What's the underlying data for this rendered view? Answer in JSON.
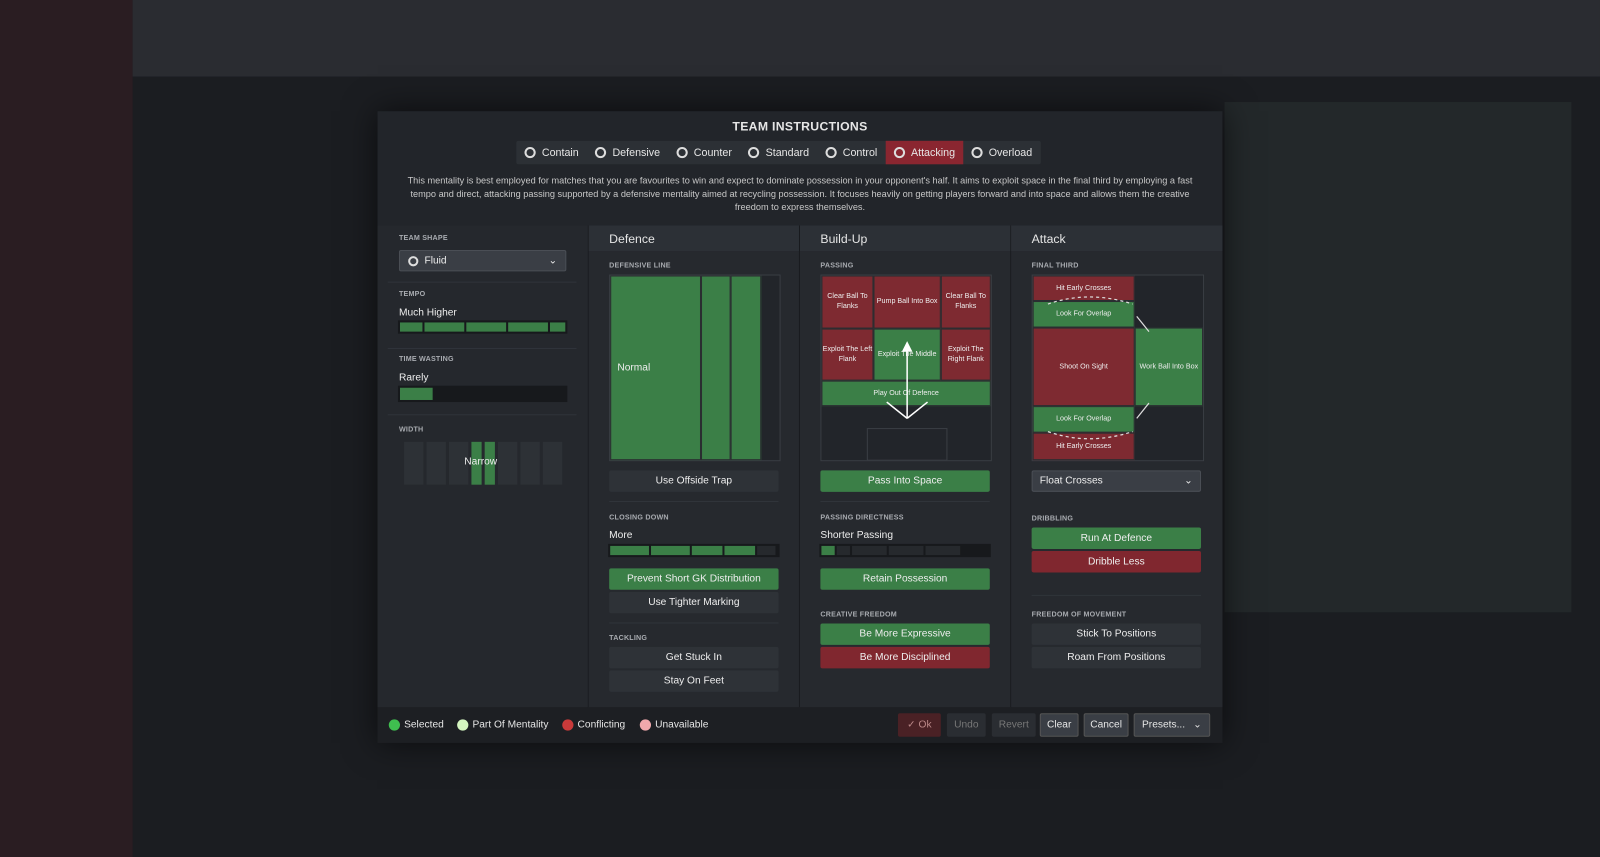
{
  "title": "TEAM INSTRUCTIONS",
  "tabs": [
    {
      "label": "Contain"
    },
    {
      "label": "Defensive"
    },
    {
      "label": "Counter"
    },
    {
      "label": "Standard"
    },
    {
      "label": "Control"
    },
    {
      "label": "Attacking",
      "active": true
    },
    {
      "label": "Overload"
    }
  ],
  "description": "This mentality is best employed for matches that you are favourites to win and expect to dominate possession in your opponent's half. It aims to exploit space in the final third by employing a fast tempo and direct, attacking passing supported by a defensive mentality aimed at recycling possession. It focuses heavily on getting players forward and into space and allows them the creative freedom to express themselves.",
  "left": {
    "team_shape_label": "TEAM SHAPE",
    "team_shape": "Fluid",
    "tempo_label": "TEMPO",
    "tempo": "Much Higher",
    "tempo_level": 5,
    "time_wasting_label": "TIME WASTING",
    "time_wasting": "Rarely",
    "time_wasting_level": 0.2,
    "width_label": "WIDTH",
    "width": "Narrow"
  },
  "defence": {
    "header": "Defence",
    "line_label": "DEFENSIVE LINE",
    "line": "Normal",
    "offside": "Use Offside Trap",
    "closing_label": "CLOSING DOWN",
    "closing": "More",
    "closing_level": 4,
    "gk": "Prevent Short GK Distribution",
    "marking": "Use Tighter Marking",
    "tackling_label": "TACKLING",
    "stuck": "Get Stuck In",
    "feet": "Stay On Feet"
  },
  "buildup": {
    "header": "Build-Up",
    "passing_label": "PASSING",
    "cells": [
      "Clear Ball To Flanks",
      "Pump Ball Into Box",
      "Clear Ball To Flanks",
      "Exploit The Left Flank",
      "Exploit The Middle",
      "Exploit The Right Flank",
      "Play Out Of Defence"
    ],
    "pass_space": "Pass Into Space",
    "directness_label": "PASSING DIRECTNESS",
    "directness": "Shorter Passing",
    "directness_level": 1,
    "retain": "Retain Possession",
    "creative_label": "CREATIVE FREEDOM",
    "expressive": "Be More Expressive",
    "disciplined": "Be More Disciplined"
  },
  "attack": {
    "header": "Attack",
    "final_label": "FINAL THIRD",
    "hit1": "Hit Early Crosses",
    "overlap1": "Look For Overlap",
    "shoot": "Shoot On Sight",
    "overlap2": "Look For Overlap",
    "hit2": "Hit Early Crosses",
    "work": "Work Ball Into Box",
    "crosses": "Float Crosses",
    "dribbling_label": "DRIBBLING",
    "run": "Run At Defence",
    "dribble_less": "Dribble Less",
    "freedom_label": "FREEDOM OF MOVEMENT",
    "stick": "Stick To Positions",
    "roam": "Roam From Positions"
  },
  "legend": [
    {
      "label": "Selected",
      "color": "#3fbf4f"
    },
    {
      "label": "Part Of Mentality",
      "color": "#d4f5c0"
    },
    {
      "label": "Conflicting",
      "color": "#c93a3a"
    },
    {
      "label": "Unavailable",
      "color": "#f0a8ac"
    }
  ],
  "footer": {
    "ok": "Ok",
    "undo": "Undo",
    "revert": "Revert",
    "clear": "Clear",
    "cancel": "Cancel",
    "presets": "Presets..."
  }
}
